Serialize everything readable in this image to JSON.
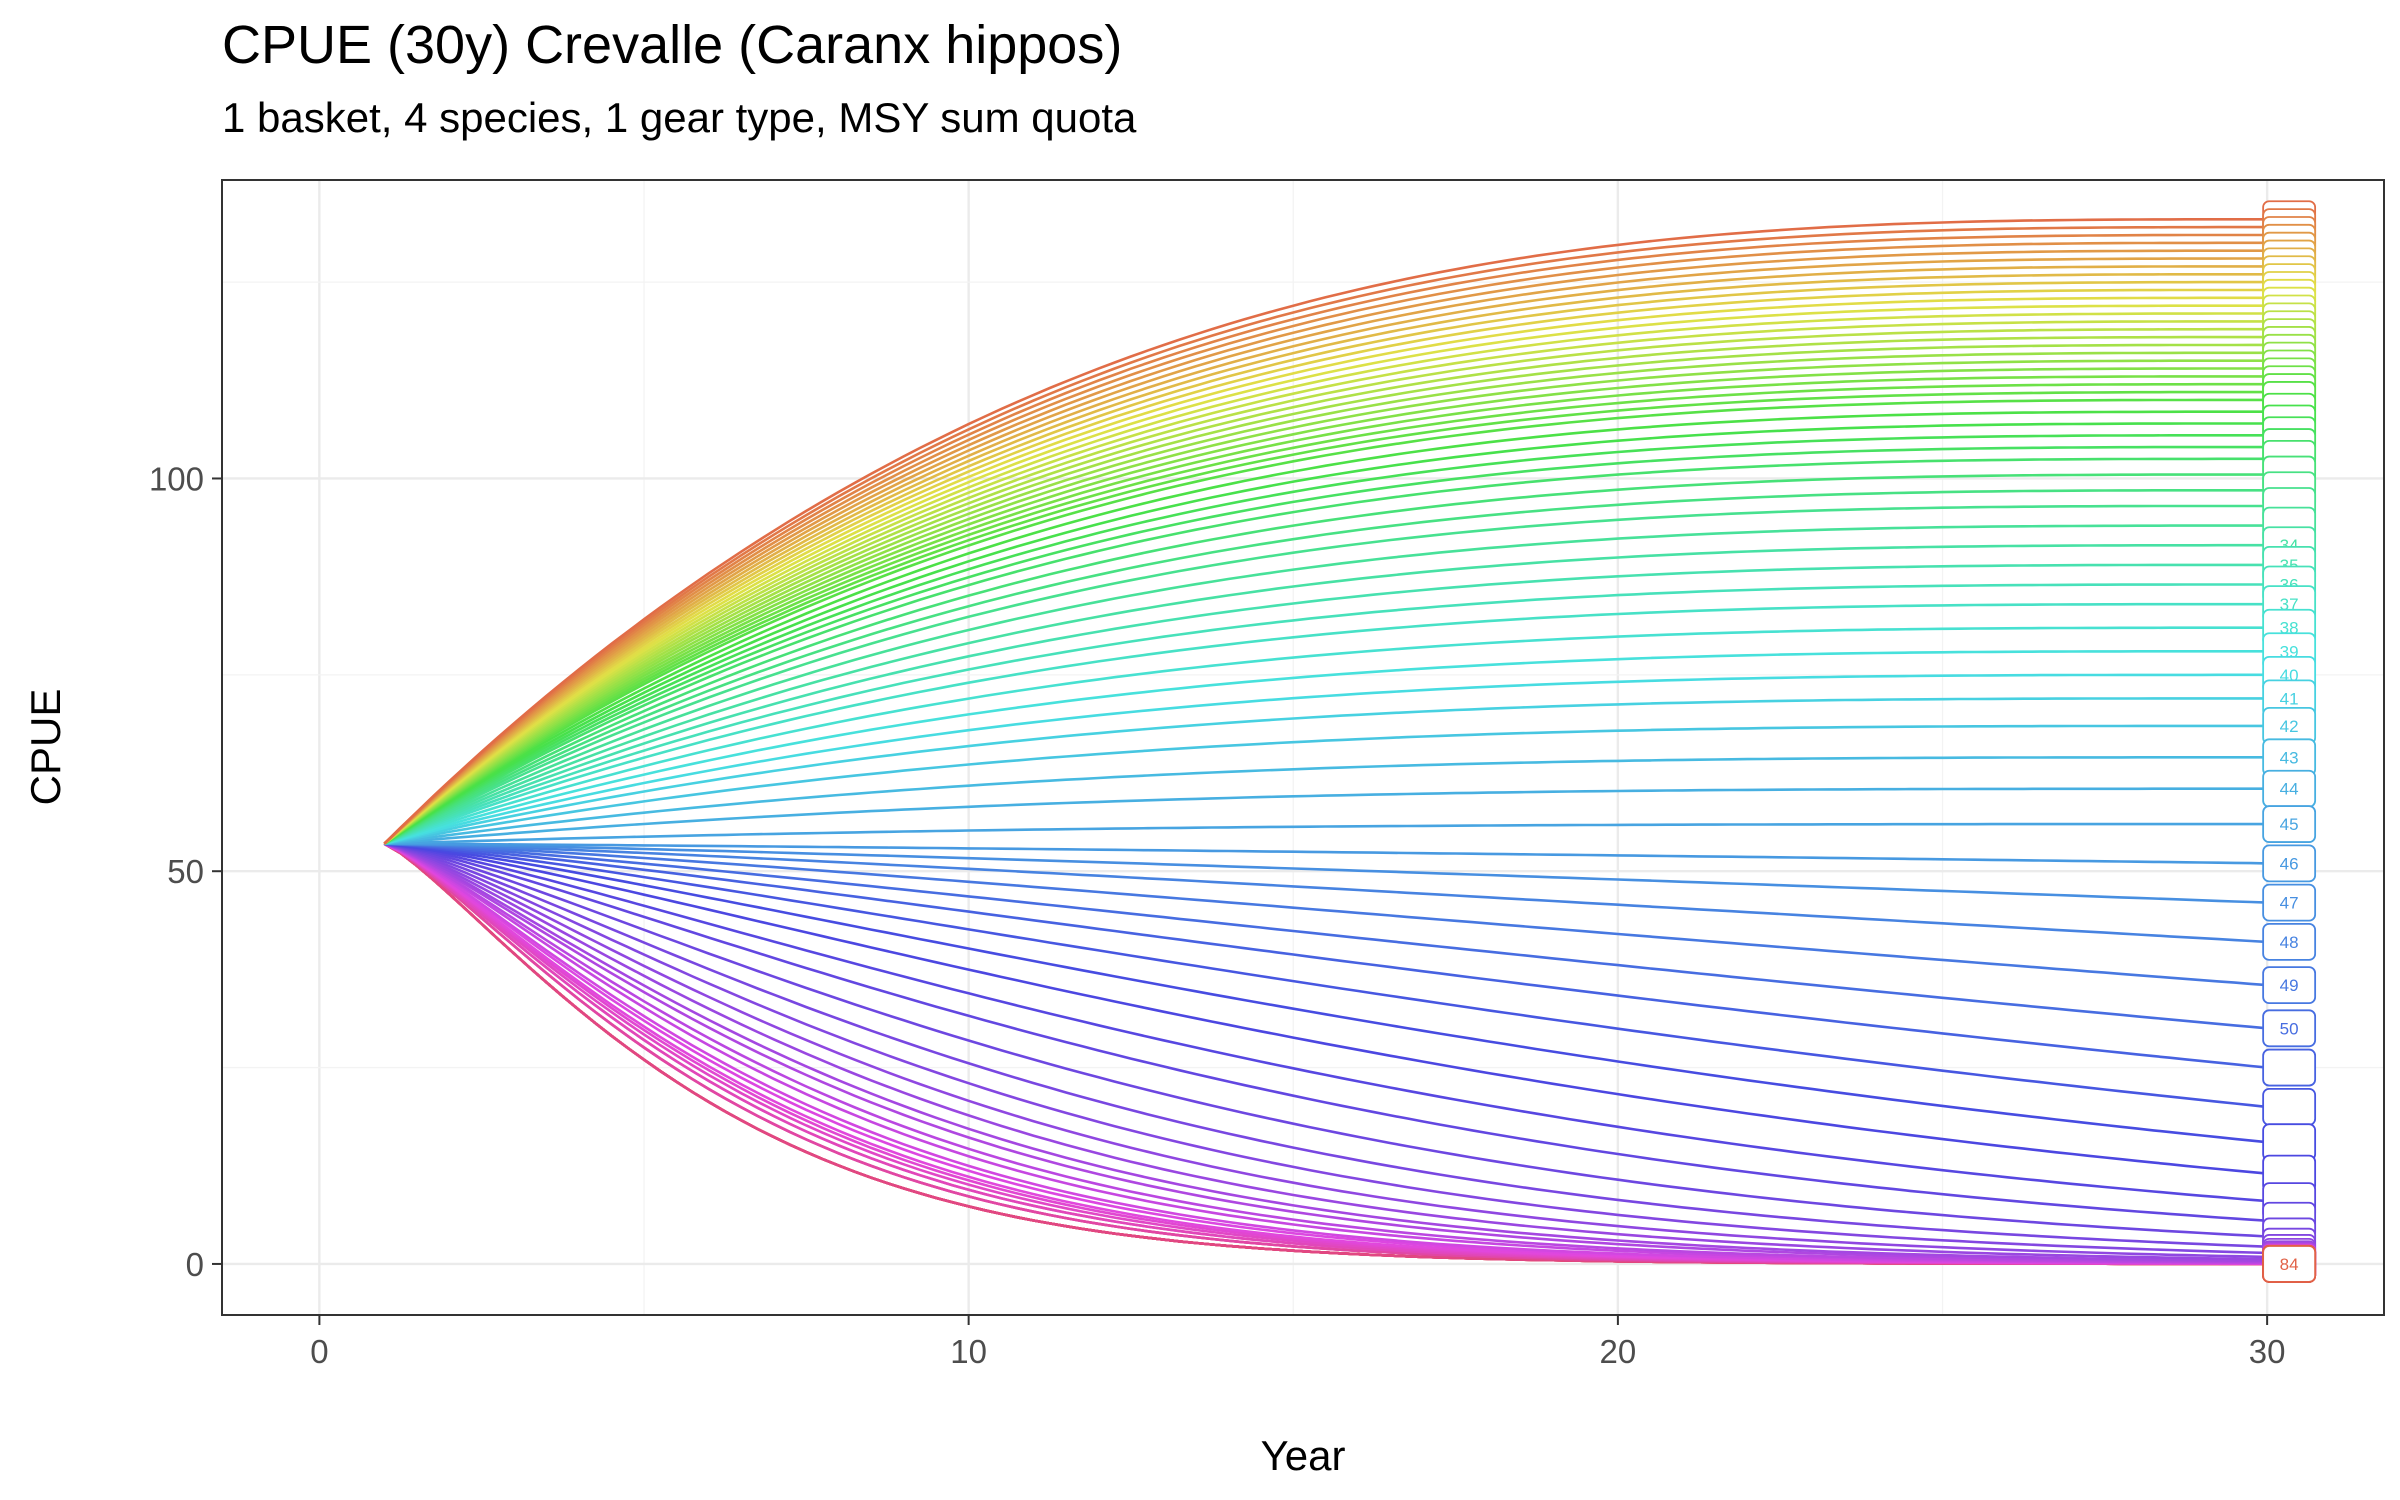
{
  "chart_data": {
    "type": "line",
    "title": "CPUE (30y) Crevalle (Caranx hippos)",
    "subtitle": "1 basket, 4 species, 1 gear type, MSY sum quota",
    "xlabel": "Year",
    "ylabel": "CPUE",
    "xlim": [
      -1.5,
      31.8
    ],
    "ylim": [
      -6.5,
      138
    ],
    "x_ticks": [
      0,
      10,
      20,
      30
    ],
    "y_ticks": [
      0,
      50,
      100
    ],
    "grid": true,
    "legend": "none",
    "start": {
      "x": 1,
      "y": 53.5
    },
    "end_x": 30,
    "series_count": 84,
    "end_values": [
      133,
      132,
      131,
      130,
      129,
      128,
      127,
      126,
      125,
      124,
      123,
      122,
      121,
      120,
      119,
      118,
      117,
      116,
      115,
      114,
      113,
      112,
      111,
      110,
      108.5,
      107,
      105.5,
      104,
      102.5,
      100.5,
      98.5,
      96.5,
      94,
      91.5,
      89,
      86.5,
      84,
      81,
      78,
      75,
      72,
      68.5,
      64.5,
      60.5,
      56,
      51,
      46,
      41,
      35.5,
      30,
      25,
      20,
      15.5,
      11.5,
      8,
      5.5,
      3.5,
      2.2,
      1.4,
      0.9,
      0.6,
      0.4,
      0.3,
      0.2,
      0.15,
      0.1,
      0.08,
      0.06,
      0.05,
      0.04,
      0.03,
      0.03,
      0.02,
      0.02,
      0.02,
      0.01,
      0.01,
      0.01,
      0.01,
      0.01,
      0.01,
      0.01,
      0.01,
      0.01
    ],
    "visible_end_labels": [
      {
        "series": 34,
        "label": "34"
      },
      {
        "series": 35,
        "label": "35"
      },
      {
        "series": 36,
        "label": "36"
      },
      {
        "series": 37,
        "label": "37"
      },
      {
        "series": 38,
        "label": "38"
      },
      {
        "series": 39,
        "label": "39"
      },
      {
        "series": 40,
        "label": "40"
      },
      {
        "series": 41,
        "label": "41"
      },
      {
        "series": 42,
        "label": "42"
      },
      {
        "series": 43,
        "label": "43"
      },
      {
        "series": 44,
        "label": "44"
      },
      {
        "series": 45,
        "label": "45"
      },
      {
        "series": 46,
        "label": "46"
      },
      {
        "series": 47,
        "label": "47"
      },
      {
        "series": 48,
        "label": "48"
      },
      {
        "series": 49,
        "label": "49"
      },
      {
        "series": 50,
        "label": "50"
      },
      {
        "series": 84,
        "label": "84"
      }
    ],
    "colors": {
      "first": "#F8766D",
      "label_green": "#00BA38",
      "label_teal": "#00BF7D",
      "last_label": "#E76BF3"
    }
  }
}
